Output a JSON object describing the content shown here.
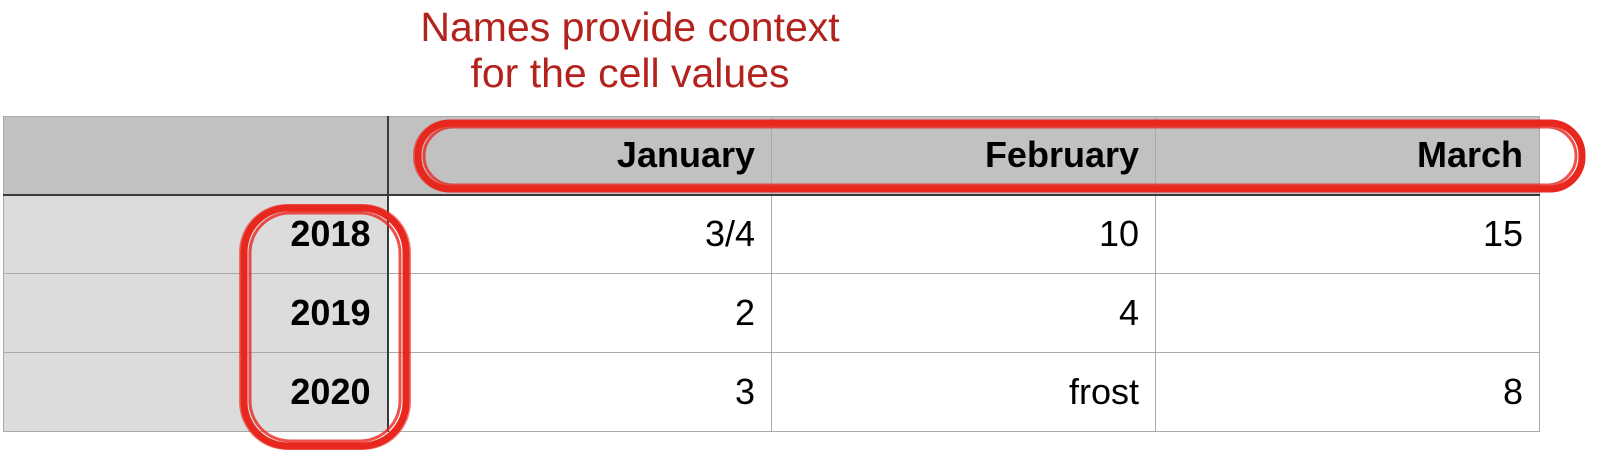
{
  "annotation": {
    "caption_lines": [
      "Names provide context",
      "for the cell values"
    ],
    "color": "#e8281f",
    "text_color": "#b3221c"
  },
  "table": {
    "corner": "",
    "columns": [
      "January",
      "February",
      "March"
    ],
    "rows": [
      {
        "label": "2018",
        "cells": [
          "3/4",
          "10",
          "15"
        ]
      },
      {
        "label": "2019",
        "cells": [
          "2",
          "4",
          ""
        ]
      },
      {
        "label": "2020",
        "cells": [
          "3",
          "frost",
          "8"
        ]
      }
    ],
    "header_bg": "#c0c1c0",
    "row_label_bg": "#dcdcdc"
  }
}
